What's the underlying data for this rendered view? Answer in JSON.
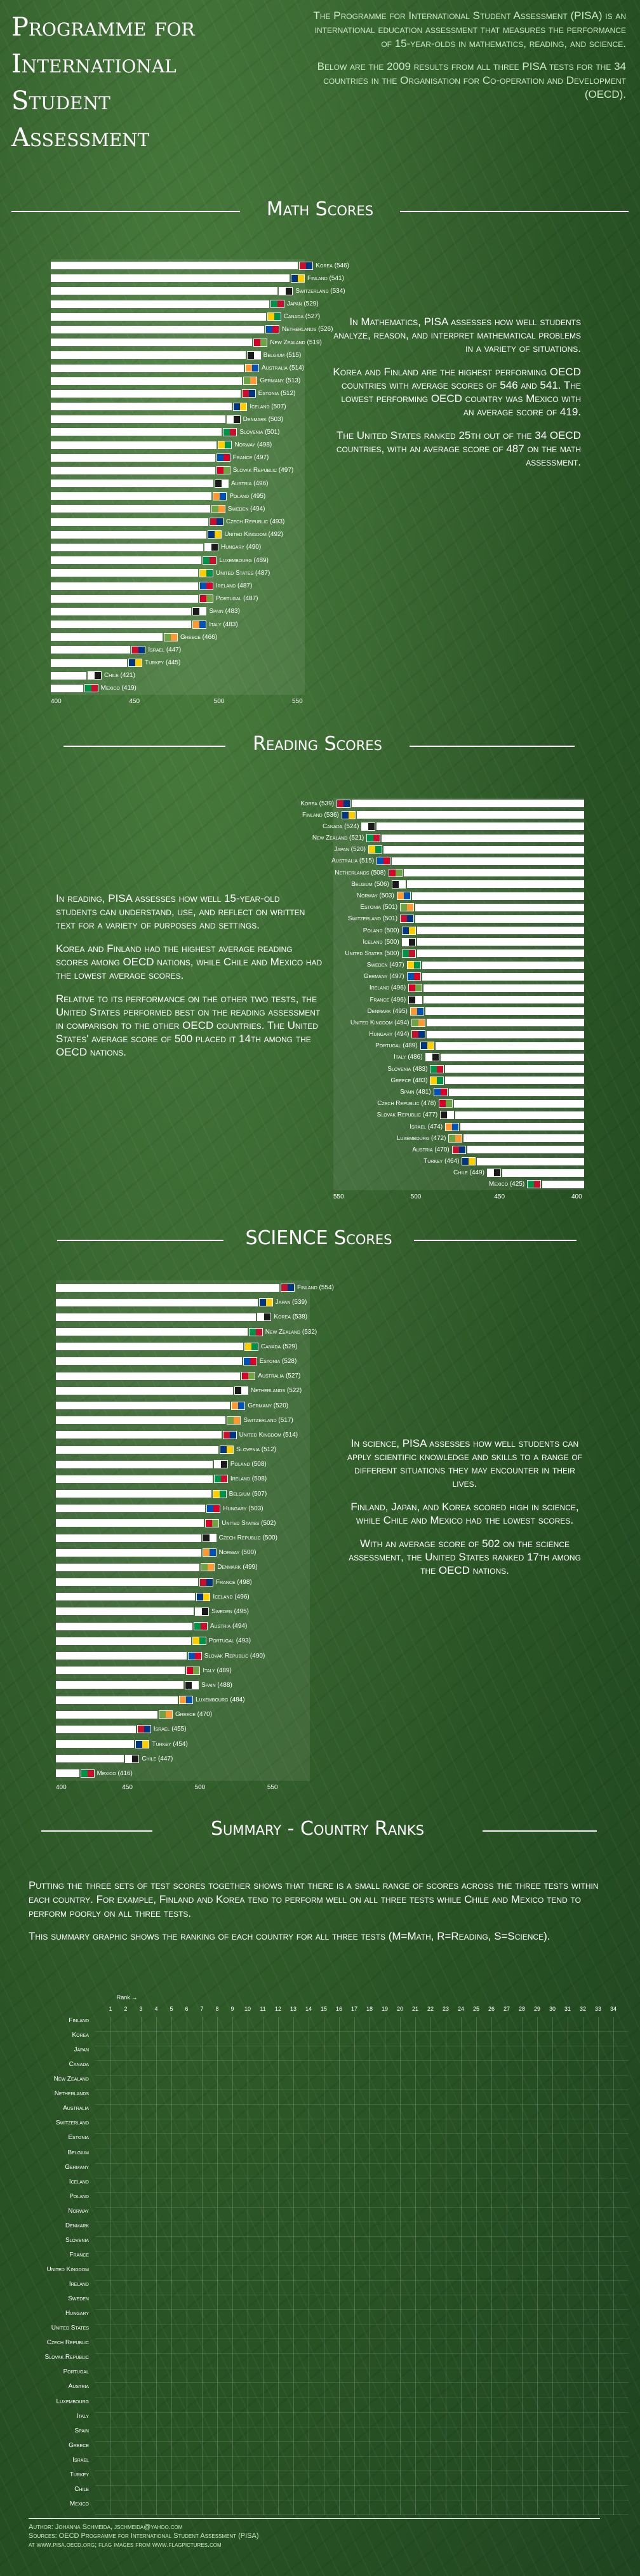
{
  "header": {
    "title_lines": [
      "Programme for",
      "International",
      "Student",
      "Assessment"
    ],
    "intro_p1": "The Programme for International Student Assessment (PISA) is an international education assessment that measures the performance of 15-year-olds in mathematics, reading, and science.",
    "intro_p2": "Below are the 2009 results from all three PISA tests for the 34 countries in the Organisation for Co-operation and Development (OECD)."
  },
  "math": {
    "title": "Math Scores",
    "p1": "In Mathematics, PISA assesses how well students analyze, reason, and interpret mathematical problems in a variety of situations.",
    "p2": "Korea and Finland are the highest performing OECD countries with average scores of 546 and 541. The lowest performing OECD country was Mexico with an average score of 419.",
    "p3": "The United States ranked 25th out of the 34 OECD countries, with an average score of 487 on the math assessment."
  },
  "reading": {
    "title": "Reading Scores",
    "p1": "In reading, PISA assesses how well 15-year-old students can understand, use, and reflect on written text for a variety of purposes and settings.",
    "p2": "Korea and Finland had the highest average reading scores among OECD nations, while Chile and Mexico had the lowest average scores.",
    "p3": "Relative to its performance on the other two tests, the United States performed best on the reading assessment in comparison to the other OECD countries. The United States' average score of 500 placed it 14th among the OECD nations."
  },
  "science": {
    "title": "SCIENCE Scores",
    "p1": "In science, PISA assesses how well students can apply scientific knowledge and skills to a range of different situations they may encounter in their lives.",
    "p2": "Finland, Japan, and Korea scored high in science, while Chile and Mexico had the lowest scores.",
    "p3": "With an average score of 502 on the science assessment, the United States ranked 17th among the OECD nations."
  },
  "summary": {
    "title": "Summary - Country Ranks",
    "p1": "Putting the three sets of test scores together shows that there is a small range of scores across the three tests within each country. For example, Finland and Korea tend to perform well on all three tests while Chile and Mexico tend to perform poorly on all three tests.",
    "p2": "This summary graphic shows the ranking of each country for all three tests (M=Math, R=Reading, S=Science).",
    "rank_label": "Rank"
  },
  "credits": {
    "line1": "Author: Johanna Schmeida, jschmeida@yahoo.com",
    "line2": "Sources: OECD Programme for International Student Assessment (PISA)",
    "line3": "at www.pisa.oecd.org; flag images from www.flagpictures.com"
  },
  "chart_data": [
    {
      "type": "bar",
      "name": "math",
      "xlim": [
        400,
        550
      ],
      "ticks": [
        "400",
        "450",
        "500",
        "550"
      ],
      "labels": [
        "Korea (546)",
        "Finland (541)",
        "Switzerland (534)",
        "Japan (529)",
        "Canada (527)",
        "Netherlands (526)",
        "New Zealand (519)",
        "Belgium (515)",
        "Australia (514)",
        "Germany (513)",
        "Estonia (512)",
        "Iceland (507)",
        "Denmark (503)",
        "Slovenia (501)",
        "Norway (498)",
        "France (497)",
        "Slovak Republic (497)",
        "Austria (496)",
        "Poland (495)",
        "Sweden (494)",
        "Czech Republic (493)",
        "United Kingdom (492)",
        "Hungary (490)",
        "Luxembourg (489)",
        "United States (487)",
        "Ireland (487)",
        "Portugal (487)",
        "Spain (483)",
        "Italy (483)",
        "Greece (466)",
        "Israel (447)",
        "Turkey (445)",
        "Chile (421)",
        "Mexico (419)"
      ],
      "values": [
        546,
        541,
        534,
        529,
        527,
        526,
        519,
        515,
        514,
        513,
        512,
        507,
        503,
        501,
        498,
        497,
        497,
        496,
        495,
        494,
        493,
        492,
        490,
        489,
        487,
        487,
        487,
        483,
        483,
        466,
        447,
        445,
        421,
        419
      ]
    },
    {
      "type": "bar",
      "name": "reading",
      "xlim": [
        400,
        550
      ],
      "ticks": [
        "400",
        "450",
        "500",
        "550"
      ],
      "labels": [
        "Korea (539)",
        "Finland (536)",
        "Canada (524)",
        "New Zealand (521)",
        "Japan (520)",
        "Australia (515)",
        "Netherlands (508)",
        "Belgium (506)",
        "Norway (503)",
        "Estonia (501)",
        "Switzerland (501)",
        "Poland (500)",
        "Iceland (500)",
        "United States (500)",
        "Sweden (497)",
        "Germany (497)",
        "Ireland (496)",
        "France (496)",
        "Denmark (495)",
        "United Kingdom (494)",
        "Hungary (494)",
        "Portugal (489)",
        "Italy (486)",
        "Slovenia (483)",
        "Greece (483)",
        "Spain (481)",
        "Czech Republic (478)",
        "Slovak Republic (477)",
        "Israel (474)",
        "Luxembourg (472)",
        "Austria (470)",
        "Turkey (464)",
        "Chile (449)",
        "Mexico (425)"
      ],
      "values": [
        539,
        536,
        524,
        521,
        520,
        515,
        508,
        506,
        503,
        501,
        501,
        500,
        500,
        500,
        497,
        497,
        496,
        496,
        495,
        494,
        494,
        489,
        486,
        483,
        483,
        481,
        478,
        477,
        474,
        472,
        470,
        464,
        449,
        425
      ]
    },
    {
      "type": "bar",
      "name": "science",
      "xlim": [
        400,
        575
      ],
      "ticks": [
        "400",
        "450",
        "500",
        "550"
      ],
      "labels": [
        "Finland (554)",
        "Japan (539)",
        "Korea (538)",
        "New Zealand (532)",
        "Canada (529)",
        "Estonia (528)",
        "Australia (527)",
        "Netherlands (522)",
        "Germany (520)",
        "Switzerland (517)",
        "United Kingdom (514)",
        "Slovenia (512)",
        "Poland (508)",
        "Ireland (508)",
        "Belgium (507)",
        "Hungary (503)",
        "United States (502)",
        "Czech Republic (500)",
        "Norway (500)",
        "Denmark (499)",
        "France (498)",
        "Iceland (496)",
        "Sweden (495)",
        "Austria (494)",
        "Portugal (493)",
        "Slovak Republic (490)",
        "Italy (489)",
        "Spain (488)",
        "Luxembourg (484)",
        "Greece (470)",
        "Israel (455)",
        "Turkey (454)",
        "Chile (447)",
        "Mexico (416)"
      ],
      "values": [
        554,
        539,
        538,
        532,
        529,
        528,
        527,
        522,
        520,
        517,
        514,
        512,
        508,
        508,
        507,
        503,
        502,
        500,
        500,
        499,
        498,
        496,
        495,
        494,
        493,
        490,
        489,
        488,
        484,
        470,
        455,
        454,
        447,
        416
      ]
    },
    {
      "type": "table",
      "name": "ranks",
      "columns": [
        "1",
        "2",
        "3",
        "4",
        "5",
        "6",
        "7",
        "8",
        "9",
        "10",
        "11",
        "12",
        "13",
        "14",
        "15",
        "16",
        "17",
        "18",
        "19",
        "20",
        "21",
        "22",
        "23",
        "24",
        "25",
        "26",
        "27",
        "28",
        "29",
        "30",
        "31",
        "32",
        "33",
        "34"
      ],
      "rows": [
        "Finland",
        "Korea",
        "Japan",
        "Canada",
        "New Zealand",
        "Netherlands",
        "Australia",
        "Switzerland",
        "Estonia",
        "Belgium",
        "Germany",
        "Iceland",
        "Poland",
        "Norway",
        "Denmark",
        "Slovenia",
        "France",
        "United Kingdom",
        "Ireland",
        "Sweden",
        "Hungary",
        "United States",
        "Czech Republic",
        "Slovak Republic",
        "Portugal",
        "Austria",
        "Luxembourg",
        "Italy",
        "Spain",
        "Greece",
        "Israel",
        "Turkey",
        "Chile",
        "Mexico"
      ]
    }
  ]
}
